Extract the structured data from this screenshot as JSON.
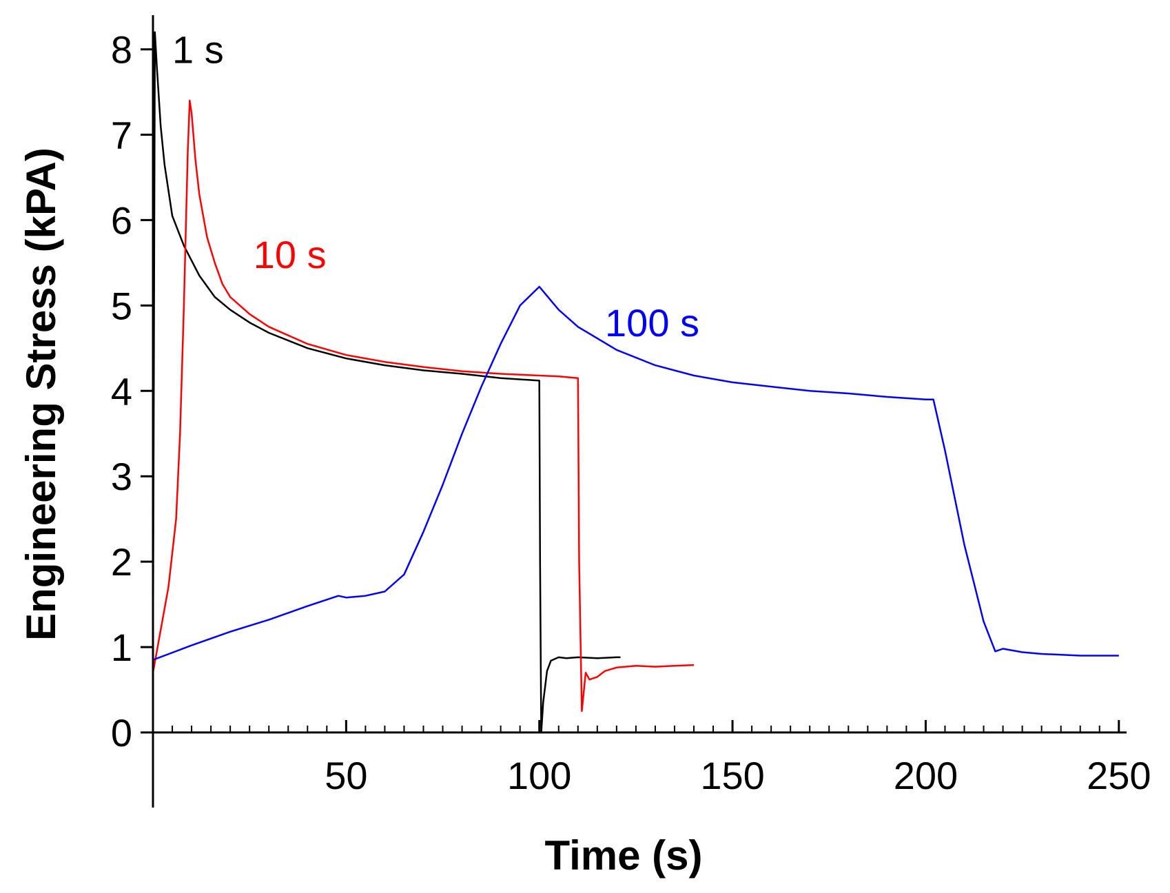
{
  "chart_data": {
    "type": "line",
    "title": "",
    "xlabel": "Time (s)",
    "ylabel": "Engineering Stress (kPA)",
    "xlim": [
      0,
      252
    ],
    "ylim": [
      0,
      8.4
    ],
    "x_ticks": [
      50,
      100,
      150,
      200,
      250
    ],
    "x_tick_labels": [
      "50",
      "100",
      "150",
      "200",
      "250"
    ],
    "x_minor_step": 5,
    "y_ticks": [
      0,
      1,
      2,
      3,
      4,
      5,
      6,
      7,
      8
    ],
    "y_tick_labels": [
      "0",
      "1",
      "2",
      "3",
      "4",
      "5",
      "6",
      "7",
      "8"
    ],
    "grid": false,
    "legend": "none",
    "series": [
      {
        "name": "1 s",
        "color": "#000000",
        "label_at": [
          5,
          8.0
        ],
        "x": [
          0,
          0.5,
          1,
          2,
          3,
          5,
          8,
          12,
          16,
          20,
          25,
          30,
          40,
          50,
          60,
          70,
          80,
          90,
          100,
          100.2,
          100.5,
          101,
          102,
          103,
          104,
          105,
          107,
          110,
          115,
          120,
          121
        ],
        "y": [
          0.85,
          8.2,
          7.8,
          7.1,
          6.65,
          6.05,
          5.7,
          5.35,
          5.1,
          4.95,
          4.8,
          4.68,
          4.5,
          4.38,
          4.3,
          4.24,
          4.2,
          4.15,
          4.12,
          2.0,
          0.0,
          0.35,
          0.72,
          0.84,
          0.86,
          0.88,
          0.87,
          0.88,
          0.87,
          0.88,
          0.88
        ]
      },
      {
        "name": "10 s",
        "color": "#ff0000",
        "label_at": [
          26,
          5.6
        ],
        "x": [
          0,
          2,
          4,
          6,
          7,
          8,
          9,
          9.5,
          10,
          11,
          12,
          14,
          16,
          18,
          20,
          25,
          30,
          40,
          50,
          60,
          70,
          80,
          90,
          100,
          105,
          110,
          110.3,
          111,
          112,
          113,
          115,
          117,
          120,
          125,
          130,
          135,
          140
        ],
        "y": [
          0.7,
          1.2,
          1.7,
          2.5,
          3.5,
          5.0,
          6.8,
          7.4,
          7.25,
          6.7,
          6.3,
          5.8,
          5.5,
          5.25,
          5.1,
          4.9,
          4.75,
          4.55,
          4.42,
          4.34,
          4.28,
          4.23,
          4.2,
          4.18,
          4.17,
          4.15,
          2.0,
          0.25,
          0.7,
          0.62,
          0.65,
          0.72,
          0.76,
          0.78,
          0.77,
          0.78,
          0.79
        ]
      },
      {
        "name": "100 s",
        "color": "#0000ff",
        "label_at": [
          117,
          4.8
        ],
        "x": [
          0,
          10,
          20,
          30,
          40,
          48,
          50,
          55,
          60,
          65,
          70,
          75,
          80,
          85,
          90,
          95,
          100,
          105,
          110,
          120,
          130,
          140,
          150,
          160,
          170,
          180,
          190,
          200,
          202,
          205,
          210,
          215,
          218,
          220,
          225,
          230,
          240,
          250
        ],
        "y": [
          0.85,
          1.02,
          1.18,
          1.32,
          1.48,
          1.6,
          1.58,
          1.6,
          1.65,
          1.85,
          2.35,
          2.9,
          3.5,
          4.05,
          4.55,
          5.0,
          5.22,
          4.95,
          4.75,
          4.48,
          4.3,
          4.18,
          4.1,
          4.05,
          4.0,
          3.97,
          3.93,
          3.9,
          3.9,
          3.3,
          2.2,
          1.3,
          0.95,
          0.98,
          0.94,
          0.92,
          0.9,
          0.9
        ]
      }
    ]
  }
}
